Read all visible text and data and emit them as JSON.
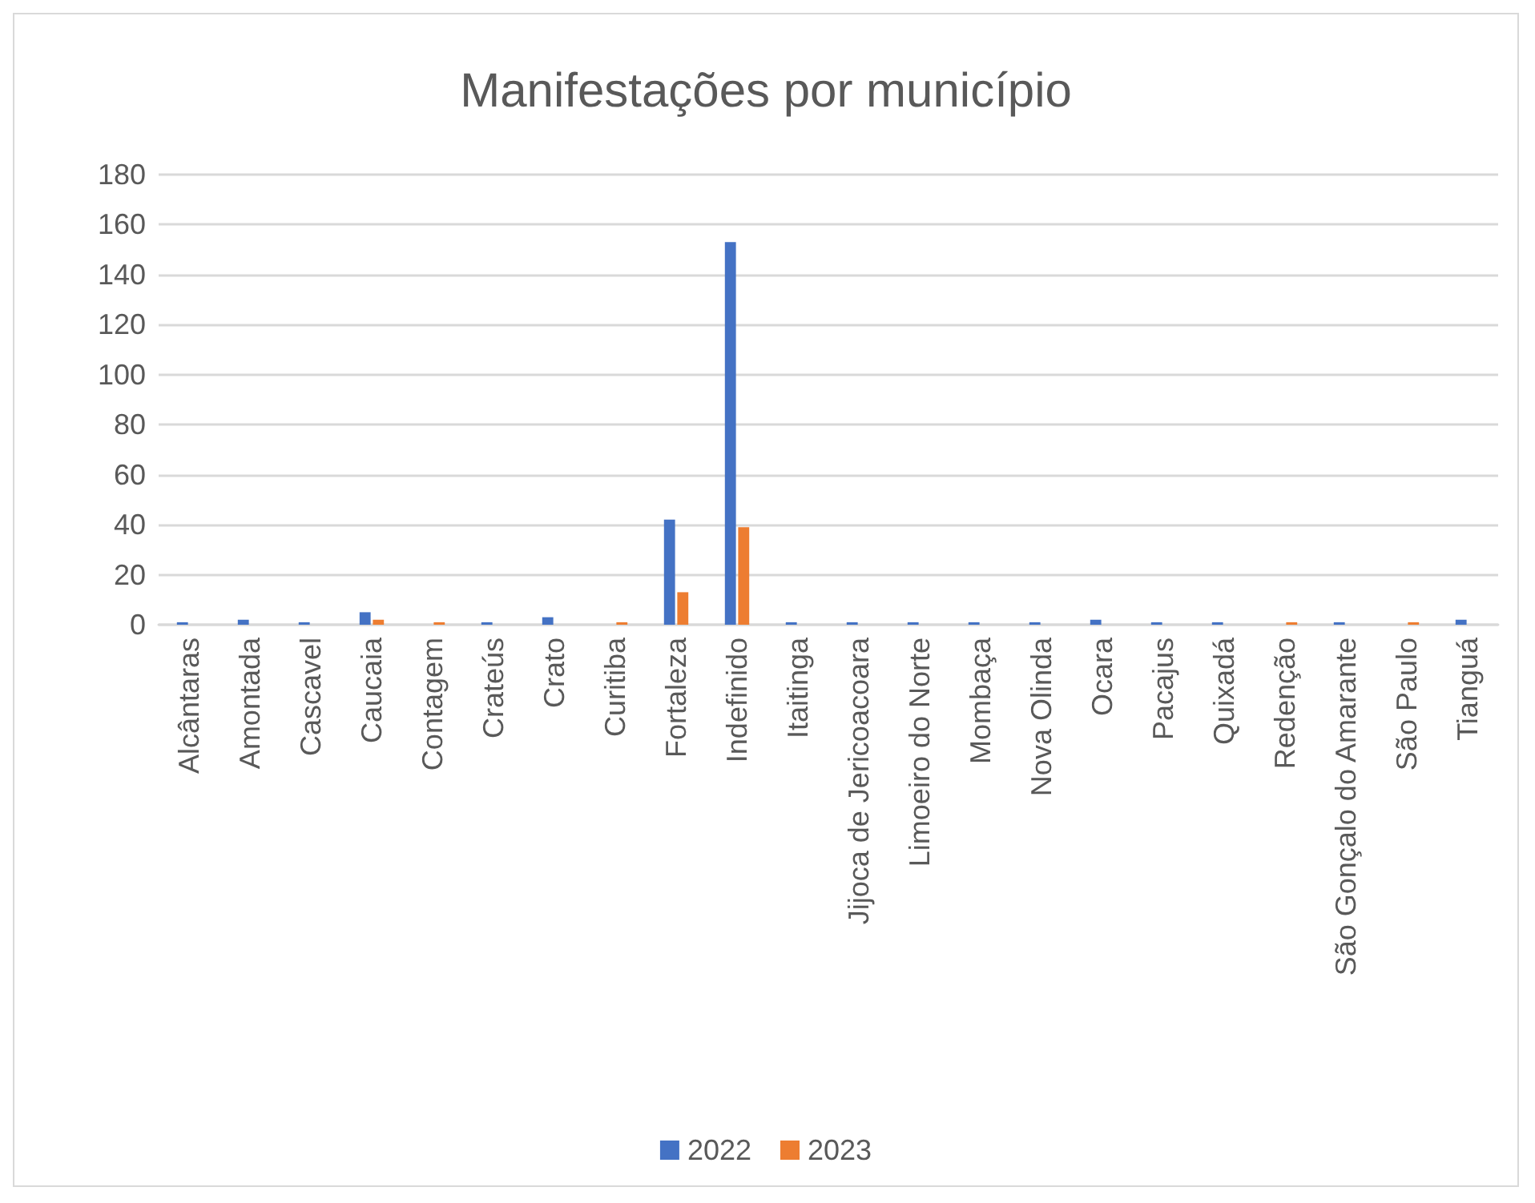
{
  "chart_data": {
    "type": "bar",
    "title": "Manifestações por município",
    "categories": [
      "Alcântaras",
      "Amontada",
      "Cascavel",
      "Caucaia",
      "Contagem",
      "Crateús",
      "Crato",
      "Curitiba",
      "Fortaleza",
      "Indefinido",
      "Itaitinga",
      "Jijoca de Jericoacoara",
      "Limoeiro do Norte",
      "Mombaça",
      "Nova Olinda",
      "Ocara",
      "Pacajus",
      "Quixadá",
      "Redenção",
      "São Gonçalo do Amarante",
      "São Paulo",
      "Tianguá"
    ],
    "series": [
      {
        "name": "2022",
        "color": "#4472c4",
        "values": [
          1,
          2,
          1,
          5,
          null,
          1,
          3,
          null,
          42,
          153,
          1,
          1,
          1,
          1,
          1,
          2,
          1,
          1,
          null,
          1,
          null,
          2
        ]
      },
      {
        "name": "2023",
        "color": "#ed7d31",
        "values": [
          null,
          null,
          null,
          2,
          1,
          null,
          null,
          1,
          13,
          39,
          null,
          null,
          null,
          null,
          null,
          null,
          null,
          null,
          1,
          null,
          1,
          null
        ]
      }
    ],
    "ylim": [
      0,
      180
    ],
    "yticks": [
      0,
      20,
      40,
      60,
      80,
      100,
      120,
      140,
      160,
      180
    ],
    "grid": "y",
    "legend": "bottom"
  }
}
